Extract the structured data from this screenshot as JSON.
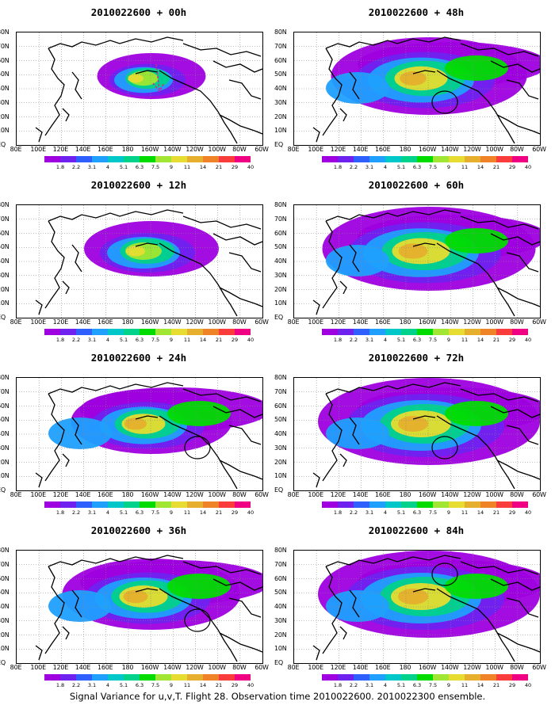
{
  "panels": [
    {
      "title": "2010022600 + 00h",
      "intensity": 0.35,
      "spread": 0.35,
      "circle": false,
      "arrow": true
    },
    {
      "title": "2010022600 + 48h",
      "intensity": 0.65,
      "spread": 0.85,
      "circle": true,
      "arrow": false
    },
    {
      "title": "2010022600 + 12h",
      "intensity": 0.45,
      "spread": 0.5,
      "circle": false,
      "arrow": false
    },
    {
      "title": "2010022600 + 60h",
      "intensity": 0.7,
      "spread": 0.95,
      "circle": false,
      "arrow": false
    },
    {
      "title": "2010022600 + 24h",
      "intensity": 0.55,
      "spread": 0.65,
      "circle": true,
      "arrow": false
    },
    {
      "title": "2010022600 + 72h",
      "intensity": 0.75,
      "spread": 1.0,
      "circle": true,
      "arrow": false
    },
    {
      "title": "2010022600 + 36h",
      "intensity": 0.6,
      "spread": 0.75,
      "circle": true,
      "arrow": false
    },
    {
      "title": "2010022600 + 84h",
      "intensity": 0.8,
      "spread": 1.0,
      "circle": true,
      "arrow": false
    }
  ],
  "lat_labels": [
    "80N",
    "70N",
    "60N",
    "50N",
    "40N",
    "30N",
    "20N",
    "10N",
    "EQ"
  ],
  "lon_labels": [
    "80E",
    "100E",
    "120E",
    "140E",
    "160E",
    "180",
    "160W",
    "140W",
    "120W",
    "100W",
    "80W",
    "60W"
  ],
  "colorbar": {
    "colors": [
      "#9f00df",
      "#6f22ef",
      "#2f5fff",
      "#1fa0ff",
      "#00c8c8",
      "#00d28c",
      "#00dc00",
      "#a0e632",
      "#e6dc32",
      "#e6af2d",
      "#f08228",
      "#fa3c3c",
      "#f00082"
    ],
    "labels": [
      "1.8",
      "2.2",
      "3.1",
      "4",
      "5.1",
      "6.3",
      "7.5",
      "9",
      "11",
      "14",
      "21",
      "29",
      "40"
    ]
  },
  "caption": "Signal Variance for u,v,T. Flight 28. Observation time 2010022600. 2010022300 ensemble."
}
